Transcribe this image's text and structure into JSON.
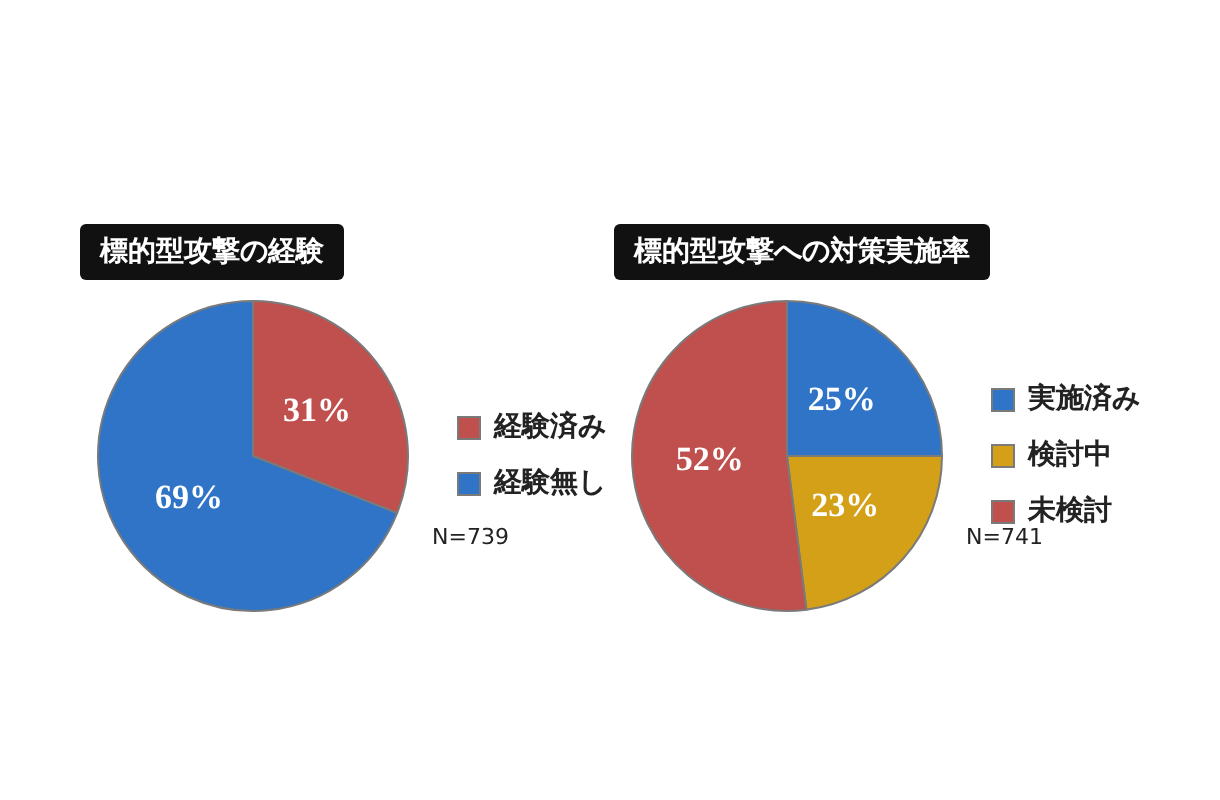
{
  "chart_data": [
    {
      "type": "pie",
      "title": "標的型攻撃の経験",
      "categories": [
        "経験済み",
        "経験無し"
      ],
      "values": [
        31,
        69
      ],
      "colors": [
        "#c0504d",
        "#2f74c6"
      ],
      "value_labels": [
        "31%",
        "69%"
      ],
      "legend": "right",
      "annotations": [
        "N=739"
      ]
    },
    {
      "type": "pie",
      "title": "標的型攻撃への対策実施率",
      "categories": [
        "実施済み",
        "検討中",
        "未検討"
      ],
      "values": [
        25,
        23,
        52
      ],
      "colors": [
        "#2f74c6",
        "#d4a017",
        "#c0504d"
      ],
      "value_labels": [
        "25%",
        "23%",
        "52%"
      ],
      "legend": "right",
      "annotations": [
        "N=741"
      ]
    }
  ]
}
